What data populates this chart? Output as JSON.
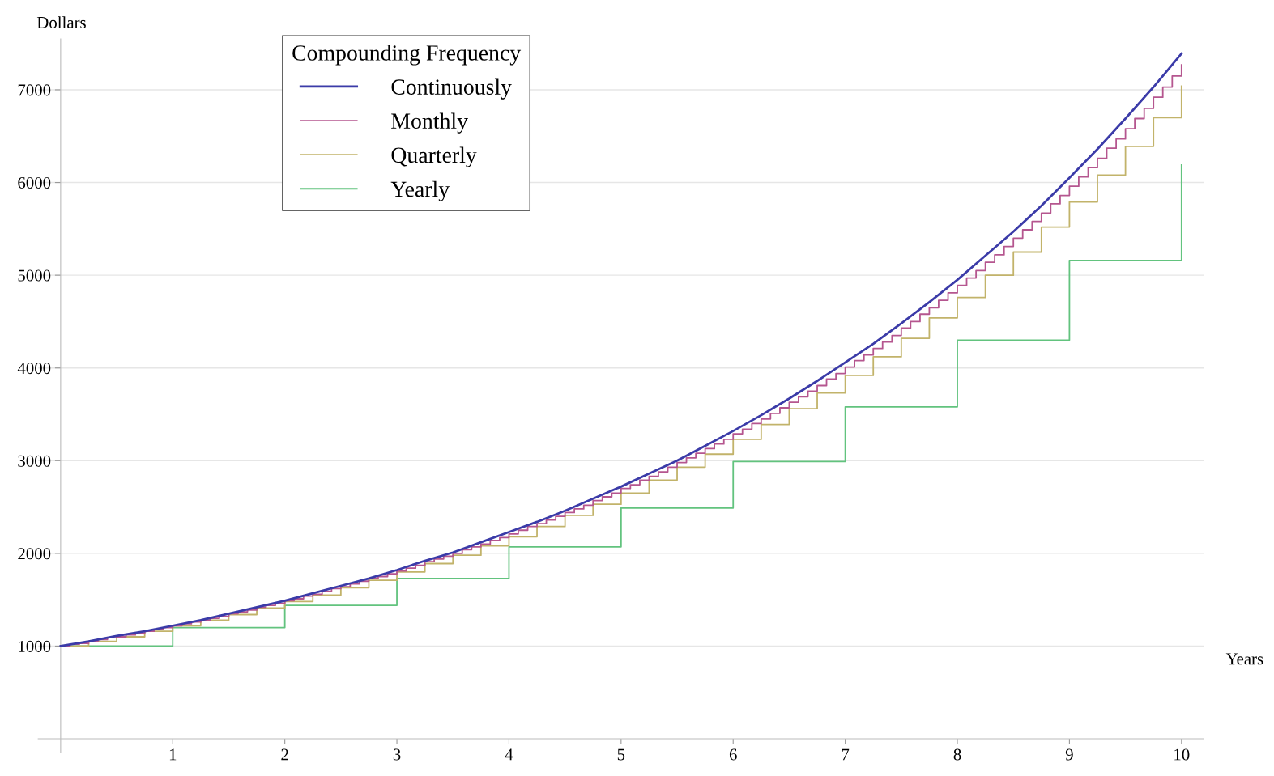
{
  "chart_data": {
    "type": "line",
    "xlabel": "Years",
    "ylabel": "Dollars",
    "legend_title": "Compounding Frequency",
    "xlim": [
      -0.2,
      10.2
    ],
    "ylim": [
      -150,
      7550
    ],
    "xticks": [
      1,
      2,
      3,
      4,
      5,
      6,
      7,
      8,
      9,
      10
    ],
    "yticks": [
      1000,
      2000,
      3000,
      4000,
      5000,
      6000,
      7000
    ],
    "grid": "y",
    "legend": "top left",
    "marker": "none",
    "line_style": "solid",
    "series": [
      {
        "name": "Continuously",
        "color": "#3b3ba8",
        "x": [
          0,
          0.25,
          0.5,
          0.75,
          1,
          1.25,
          1.5,
          1.75,
          2,
          2.25,
          2.5,
          2.75,
          3,
          3.25,
          3.5,
          3.75,
          4,
          4.25,
          4.5,
          4.75,
          5,
          5.25,
          5.5,
          5.75,
          6,
          6.25,
          6.5,
          6.75,
          7,
          7.25,
          7.5,
          7.75,
          8,
          8.25,
          8.5,
          8.75,
          9,
          9.25,
          9.5,
          9.75,
          10
        ],
        "values": [
          1000,
          1050,
          1110,
          1160,
          1220,
          1280,
          1350,
          1420,
          1490,
          1570,
          1650,
          1730,
          1820,
          1920,
          2010,
          2120,
          2230,
          2340,
          2460,
          2590,
          2720,
          2860,
          3000,
          3160,
          3320,
          3490,
          3670,
          3860,
          4060,
          4260,
          4480,
          4710,
          4950,
          5210,
          5470,
          5750,
          6050,
          6360,
          6690,
          7030,
          7390
        ]
      },
      {
        "name": "Monthly",
        "type": "step",
        "color": "#b5568f",
        "x": [
          0,
          0.083,
          0.167,
          0.25,
          0.333,
          0.417,
          0.5,
          0.583,
          0.667,
          0.75,
          0.833,
          0.917,
          1,
          1.083,
          1.167,
          1.25,
          1.333,
          1.417,
          1.5,
          1.583,
          1.667,
          1.75,
          1.833,
          1.917,
          2,
          2.083,
          2.167,
          2.25,
          2.333,
          2.417,
          2.5,
          2.583,
          2.667,
          2.75,
          2.833,
          2.917,
          3,
          3.083,
          3.167,
          3.25,
          3.333,
          3.417,
          3.5,
          3.583,
          3.667,
          3.75,
          3.833,
          3.917,
          4,
          4.083,
          4.167,
          4.25,
          4.333,
          4.417,
          4.5,
          4.583,
          4.667,
          4.75,
          4.833,
          4.917,
          5,
          5.083,
          5.167,
          5.25,
          5.333,
          5.417,
          5.5,
          5.583,
          5.667,
          5.75,
          5.833,
          5.917,
          6,
          6.083,
          6.167,
          6.25,
          6.333,
          6.417,
          6.5,
          6.583,
          6.667,
          6.75,
          6.833,
          6.917,
          7,
          7.083,
          7.167,
          7.25,
          7.333,
          7.417,
          7.5,
          7.583,
          7.667,
          7.75,
          7.833,
          7.917,
          8,
          8.083,
          8.167,
          8.25,
          8.333,
          8.417,
          8.5,
          8.583,
          8.667,
          8.75,
          8.833,
          8.917,
          9,
          9.083,
          9.167,
          9.25,
          9.333,
          9.417,
          9.5,
          9.583,
          9.667,
          9.75,
          9.833,
          9.917,
          10
        ],
        "values": [
          1000,
          1020,
          1030,
          1050,
          1070,
          1090,
          1100,
          1120,
          1140,
          1160,
          1180,
          1200,
          1220,
          1240,
          1260,
          1280,
          1300,
          1320,
          1350,
          1370,
          1390,
          1420,
          1440,
          1460,
          1490,
          1510,
          1540,
          1560,
          1590,
          1620,
          1640,
          1670,
          1700,
          1730,
          1750,
          1780,
          1810,
          1840,
          1870,
          1910,
          1940,
          1970,
          2000,
          2040,
          2070,
          2100,
          2140,
          2170,
          2210,
          2250,
          2290,
          2320,
          2360,
          2400,
          2440,
          2480,
          2520,
          2570,
          2610,
          2650,
          2700,
          2740,
          2790,
          2830,
          2880,
          2930,
          2980,
          3030,
          3080,
          3130,
          3180,
          3230,
          3290,
          3340,
          3400,
          3450,
          3510,
          3570,
          3630,
          3690,
          3750,
          3810,
          3880,
          3940,
          4010,
          4080,
          4140,
          4210,
          4280,
          4350,
          4430,
          4500,
          4580,
          4650,
          4730,
          4810,
          4890,
          4970,
          5050,
          5140,
          5220,
          5310,
          5400,
          5490,
          5580,
          5670,
          5770,
          5860,
          5960,
          6060,
          6160,
          6260,
          6370,
          6470,
          6580,
          6690,
          6800,
          6920,
          7030,
          7150,
          7270
        ]
      },
      {
        "name": "Quarterly",
        "type": "step",
        "color": "#c2b36a",
        "x": [
          0,
          0.25,
          0.5,
          0.75,
          1,
          1.25,
          1.5,
          1.75,
          2,
          2.25,
          2.5,
          2.75,
          3,
          3.25,
          3.5,
          3.75,
          4,
          4.25,
          4.5,
          4.75,
          5,
          5.25,
          5.5,
          5.75,
          6,
          6.25,
          6.5,
          6.75,
          7,
          7.25,
          7.5,
          7.75,
          8,
          8.25,
          8.5,
          8.75,
          9,
          9.25,
          9.5,
          9.75,
          10
        ],
        "values": [
          1000,
          1050,
          1100,
          1160,
          1220,
          1280,
          1340,
          1410,
          1480,
          1550,
          1630,
          1710,
          1800,
          1890,
          1980,
          2080,
          2180,
          2290,
          2410,
          2530,
          2650,
          2790,
          2930,
          3070,
          3230,
          3390,
          3560,
          3730,
          3920,
          4120,
          4320,
          4540,
          4760,
          5000,
          5250,
          5520,
          5790,
          6080,
          6390,
          6700,
          7040
        ]
      },
      {
        "name": "Yearly",
        "type": "step",
        "color": "#62c37e",
        "x": [
          0,
          1,
          2,
          3,
          4,
          5,
          6,
          7,
          8,
          9,
          10
        ],
        "values": [
          1000,
          1200,
          1440,
          1730,
          2070,
          2490,
          2990,
          3580,
          4300,
          5160,
          6190
        ]
      }
    ]
  }
}
